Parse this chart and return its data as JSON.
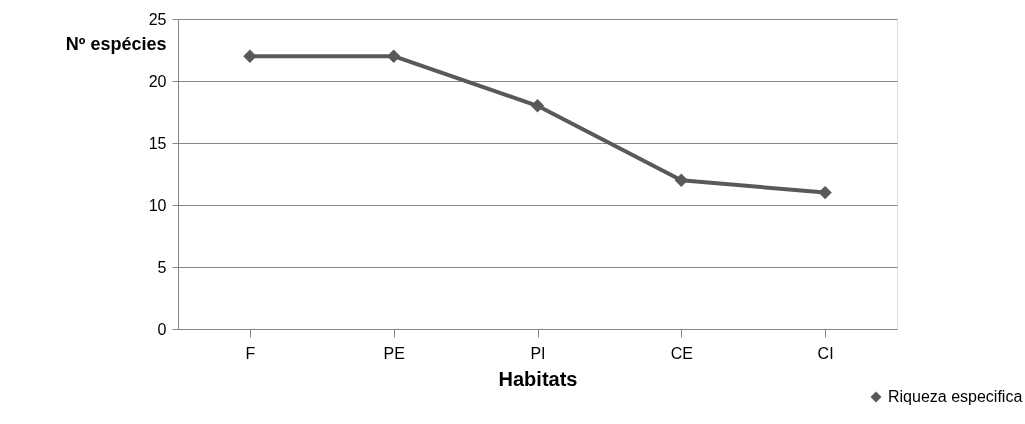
{
  "chart_data": {
    "type": "line",
    "xlabel": "Habitats",
    "ylabel": "Nº espécies",
    "categories": [
      "F",
      "PE",
      "PI",
      "CE",
      "CI"
    ],
    "series": [
      {
        "name": "Riqueza especifica",
        "color": "#595959",
        "values": [
          22,
          22,
          18,
          12,
          11
        ]
      }
    ],
    "ylim": [
      0,
      25
    ],
    "yticks": [
      0,
      5,
      10,
      15,
      20,
      25
    ],
    "grid": "y",
    "legend": "bottom right",
    "marker": "diamond",
    "line_style": "solid"
  }
}
